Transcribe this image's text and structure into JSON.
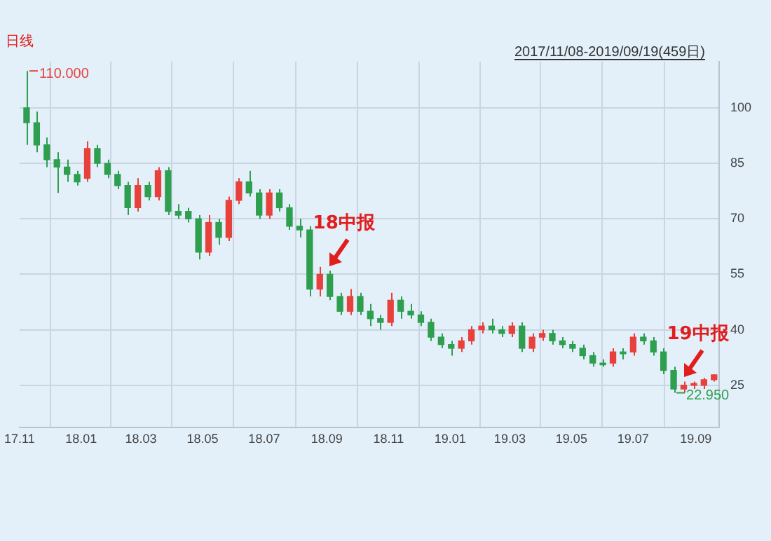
{
  "chart_data": {
    "type": "candlestick",
    "subtitle": "日线",
    "annotations": [
      "2017/11/08-2019/09/19(459日)",
      {
        "text": "110.000",
        "x": "2017-11-08",
        "y": 110
      },
      {
        "text": "22.950",
        "x": "2019-08-10",
        "y": 22.95
      },
      {
        "text": "18中报",
        "x": "2018-09-04",
        "y": 56
      },
      {
        "text": "19中报",
        "x": "2019-08-20",
        "y": 26
      }
    ],
    "x": [
      "2017-11-08",
      "2017-11-18",
      "2017-11-28",
      "2017-12-08",
      "2017-12-18",
      "2017-12-28",
      "2018-01-07",
      "2018-01-17",
      "2018-01-27",
      "2018-02-06",
      "2018-02-16",
      "2018-02-26",
      "2018-03-08",
      "2018-03-18",
      "2018-03-28",
      "2018-04-07",
      "2018-04-17",
      "2018-04-27",
      "2018-05-07",
      "2018-05-17",
      "2018-05-27",
      "2018-06-06",
      "2018-06-16",
      "2018-06-26",
      "2018-07-06",
      "2018-07-16",
      "2018-07-26",
      "2018-08-05",
      "2018-08-15",
      "2018-08-25",
      "2018-09-04",
      "2018-09-14",
      "2018-09-24",
      "2018-10-04",
      "2018-10-14",
      "2018-10-24",
      "2018-11-03",
      "2018-11-13",
      "2018-11-23",
      "2018-12-03",
      "2018-12-13",
      "2018-12-23",
      "2019-01-02",
      "2019-01-12",
      "2019-01-22",
      "2019-02-01",
      "2019-02-11",
      "2019-02-21",
      "2019-03-03",
      "2019-03-13",
      "2019-03-23",
      "2019-04-02",
      "2019-04-12",
      "2019-04-22",
      "2019-05-02",
      "2019-05-12",
      "2019-05-22",
      "2019-06-01",
      "2019-06-11",
      "2019-06-21",
      "2019-07-01",
      "2019-07-11",
      "2019-07-21",
      "2019-07-31",
      "2019-08-10",
      "2019-08-20",
      "2019-08-30",
      "2019-09-09",
      "2019-09-19"
    ],
    "ohlc": [
      [
        100,
        110,
        90,
        96
      ],
      [
        96,
        99,
        88,
        90
      ],
      [
        90,
        92,
        84,
        86
      ],
      [
        86,
        88,
        77,
        84
      ],
      [
        84,
        86,
        80,
        82
      ],
      [
        82,
        83,
        79,
        80
      ],
      [
        81,
        91,
        80,
        89
      ],
      [
        89,
        90,
        84,
        85
      ],
      [
        85,
        86,
        81,
        82
      ],
      [
        82,
        83,
        78,
        79
      ],
      [
        79,
        80,
        71,
        73
      ],
      [
        73,
        81,
        72,
        79
      ],
      [
        79,
        80,
        75,
        76
      ],
      [
        76,
        84,
        75,
        83
      ],
      [
        83,
        84,
        71,
        72
      ],
      [
        72,
        74,
        70,
        71
      ],
      [
        72,
        73,
        69,
        70
      ],
      [
        70,
        71,
        59,
        61
      ],
      [
        61,
        71,
        60,
        69
      ],
      [
        69,
        70,
        63,
        65
      ],
      [
        65,
        76,
        64,
        75
      ],
      [
        75,
        81,
        74,
        80
      ],
      [
        80,
        83,
        76,
        77
      ],
      [
        77,
        78,
        70,
        71
      ],
      [
        71,
        78,
        70,
        77
      ],
      [
        77,
        78,
        72,
        73
      ],
      [
        73,
        74,
        67,
        68
      ],
      [
        68,
        70,
        65,
        67
      ],
      [
        67,
        68,
        49,
        51
      ],
      [
        51,
        57,
        49,
        55
      ],
      [
        55,
        56,
        48,
        49
      ],
      [
        49,
        50,
        44,
        45
      ],
      [
        45,
        51,
        44,
        49
      ],
      [
        49,
        50,
        44,
        45
      ],
      [
        45,
        47,
        41,
        43
      ],
      [
        43,
        44,
        40,
        42
      ],
      [
        42,
        50,
        41,
        48
      ],
      [
        48,
        49,
        43,
        45
      ],
      [
        45,
        47,
        43,
        44
      ],
      [
        44,
        45,
        41,
        42
      ],
      [
        42,
        43,
        37,
        38
      ],
      [
        38,
        39,
        35,
        36
      ],
      [
        36,
        37,
        33,
        35
      ],
      [
        35,
        38,
        34,
        37
      ],
      [
        37,
        41,
        36,
        40
      ],
      [
        40,
        42,
        39,
        41
      ],
      [
        41,
        43,
        39,
        40
      ],
      [
        40,
        41,
        38,
        39
      ],
      [
        39,
        42,
        38,
        41
      ],
      [
        41,
        42,
        34,
        35
      ],
      [
        35,
        39,
        34,
        38
      ],
      [
        38,
        40,
        37,
        39
      ],
      [
        39,
        40,
        36,
        37
      ],
      [
        37,
        38,
        35,
        36
      ],
      [
        36,
        37,
        34,
        35
      ],
      [
        35,
        36,
        32,
        33
      ],
      [
        33,
        34,
        30,
        31
      ],
      [
        31,
        32,
        30,
        30.5
      ],
      [
        31,
        35,
        30,
        34
      ],
      [
        34,
        35,
        32,
        33.5
      ],
      [
        34,
        39,
        33,
        38
      ],
      [
        38,
        39,
        36,
        37
      ],
      [
        37,
        38,
        33,
        34
      ],
      [
        34,
        35,
        28,
        29
      ],
      [
        29,
        30,
        22.95,
        24
      ],
      [
        24,
        26,
        23,
        25
      ],
      [
        25,
        26,
        24,
        25.5
      ],
      [
        25,
        27,
        24,
        26.5
      ],
      [
        26.5,
        28,
        26,
        27.8
      ]
    ],
    "colors": [
      "#2e9e4f",
      "#2e9e4f",
      "#2e9e4f",
      "#2e9e4f",
      "#2e9e4f",
      "#2e9e4f",
      "#e8413c",
      "#2e9e4f",
      "#2e9e4f",
      "#2e9e4f",
      "#2e9e4f",
      "#e8413c",
      "#2e9e4f",
      "#e8413c",
      "#2e9e4f",
      "#2e9e4f",
      "#2e9e4f",
      "#2e9e4f",
      "#e8413c",
      "#2e9e4f",
      "#e8413c",
      "#e8413c",
      "#2e9e4f",
      "#2e9e4f",
      "#e8413c",
      "#2e9e4f",
      "#2e9e4f",
      "#2e9e4f",
      "#2e9e4f",
      "#e8413c",
      "#2e9e4f",
      "#2e9e4f",
      "#e8413c",
      "#2e9e4f",
      "#2e9e4f",
      "#2e9e4f",
      "#e8413c",
      "#2e9e4f",
      "#2e9e4f",
      "#2e9e4f",
      "#2e9e4f",
      "#2e9e4f",
      "#2e9e4f",
      "#e8413c",
      "#e8413c",
      "#e8413c",
      "#2e9e4f",
      "#2e9e4f",
      "#e8413c",
      "#2e9e4f",
      "#e8413c",
      "#e8413c",
      "#2e9e4f",
      "#2e9e4f",
      "#2e9e4f",
      "#2e9e4f",
      "#2e9e4f",
      "#2e9e4f",
      "#e8413c",
      "#2e9e4f",
      "#e8413c",
      "#2e9e4f",
      "#2e9e4f",
      "#2e9e4f",
      "#2e9e4f",
      "#e8413c",
      "#e8413c",
      "#e8413c",
      "#e8413c"
    ],
    "xlim": [
      "2017-11-01",
      "2019-09-24"
    ],
    "xticks": [
      {
        "value": "2017-11-01",
        "label": "17.11"
      },
      {
        "value": "2018-01-01",
        "label": "18.01"
      },
      {
        "value": "2018-03-01",
        "label": "18.03"
      },
      {
        "value": "2018-05-01",
        "label": "18.05"
      },
      {
        "value": "2018-07-01",
        "label": "18.07"
      },
      {
        "value": "2018-09-01",
        "label": "18.09"
      },
      {
        "value": "2018-11-01",
        "label": "18.11"
      },
      {
        "value": "2019-01-01",
        "label": "19.01"
      },
      {
        "value": "2019-03-01",
        "label": "19.03"
      },
      {
        "value": "2019-05-01",
        "label": "19.05"
      },
      {
        "value": "2019-07-01",
        "label": "19.07"
      },
      {
        "value": "2019-09-01",
        "label": "19.09"
      }
    ],
    "ylim": [
      13.5,
      112.5
    ],
    "yticks": [
      25,
      40,
      55,
      70,
      85,
      100
    ],
    "grid": true,
    "legend": false
  }
}
